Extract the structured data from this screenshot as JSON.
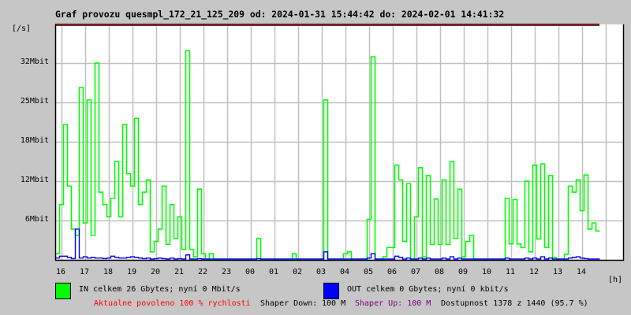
{
  "title": "Graf provozu quesmpl_172_21_125_209 od: 2024-01-31 15:44:42 do: 2024-02-01 14:41:32",
  "y_unit_label": "[/s]",
  "x_unit_label": "[h]",
  "legend": {
    "in": {
      "text": "IN celkem 26 Gbytes; nyní 0 Mbit/s",
      "color": "#00ff00"
    },
    "out": {
      "text": "OUT celkem 0 Gbytes; nyní 0 kbit/s",
      "color": "#0000ff"
    }
  },
  "footer": {
    "allowed": "Aktualne povoleno 100 % rychlosti",
    "shaper_down_label": "Shaper Down:",
    "shaper_down_value": "100 M",
    "shaper_up": "Shaper Up: 100 M",
    "availability": "Dostupnost 1378 z 1440 (95.7 %)"
  },
  "colors": {
    "background": "#c6c6c6",
    "plot": "#ffffff",
    "grid": "#c0c0c0",
    "allowed_text": "#ff0000",
    "shaper_up_text": "#800080"
  },
  "chart_data": {
    "type": "line",
    "title": "Graf provozu quesmpl_172_21_125_209 od: 2024-01-31 15:44:42 do: 2024-02-01 14:41:32",
    "xlabel": "[h]",
    "ylabel": "[/s]",
    "x_start": "2024-01-31 15:50",
    "x_step_minutes": 10,
    "x_tick_labels": [
      "16",
      "17",
      "18",
      "19",
      "20",
      "21",
      "22",
      "23",
      "00",
      "01",
      "02",
      "03",
      "04",
      "05",
      "06",
      "07",
      "08",
      "09",
      "10",
      "11",
      "12",
      "13",
      "14"
    ],
    "y_ticks": [
      {
        "value": 6.4,
        "label": "6Mbit"
      },
      {
        "value": 12.8,
        "label": "12Mbit"
      },
      {
        "value": 19.2,
        "label": "18Mbit"
      },
      {
        "value": 25.6,
        "label": "25Mbit"
      },
      {
        "value": 32,
        "label": "32Mbit"
      }
    ],
    "ylim": [
      0,
      38.4
    ],
    "y_unit": "Mbit/s",
    "grid": true,
    "legend_position": "bottom",
    "series": [
      {
        "name": "IN",
        "color": "#00ff00",
        "values": [
          1,
          9,
          22,
          12,
          5,
          4,
          28,
          6,
          26,
          4,
          32,
          11,
          9,
          7,
          10,
          16,
          7,
          22,
          14,
          12,
          23,
          9,
          11,
          13,
          1.3,
          3,
          5,
          12,
          2.5,
          9,
          3.5,
          7,
          1.7,
          34,
          1.7,
          0.5,
          11.5,
          1,
          0,
          1,
          0,
          0,
          0,
          0,
          0,
          0,
          0,
          0,
          0,
          0,
          0,
          3.5,
          0,
          0,
          0,
          0,
          0,
          0,
          0,
          0,
          1,
          0,
          0,
          0,
          0,
          0,
          0,
          0,
          26,
          0,
          0,
          0,
          0,
          1,
          1.3,
          0,
          0,
          0,
          0,
          6.6,
          33,
          0,
          0,
          0.5,
          2,
          2,
          15.4,
          13,
          3,
          12.4,
          0,
          7,
          15,
          0.5,
          13.7,
          2.5,
          9.9,
          2.5,
          13,
          2.5,
          16,
          3.5,
          11.5,
          0.5,
          3,
          4,
          0,
          0,
          0,
          0,
          0,
          0,
          0,
          0,
          10,
          2.6,
          9.8,
          2.6,
          2,
          12.8,
          1.3,
          15.4,
          3.4,
          15.6,
          2,
          13.7,
          0.4,
          0,
          0,
          0.9,
          12,
          11,
          13,
          8,
          13.8,
          5,
          6,
          4.7
        ]
      },
      {
        "name": "OUT",
        "color": "#0000ff",
        "values": [
          0.3,
          0.6,
          0.6,
          0.4,
          0.2,
          5,
          0.3,
          0.5,
          0.3,
          0.4,
          0.3,
          0.3,
          0.2,
          0.3,
          0.6,
          0.4,
          0.3,
          0.3,
          0.4,
          0.5,
          0.4,
          0.3,
          0.2,
          0.3,
          0,
          0.2,
          0.3,
          0.2,
          0,
          0.3,
          0,
          0.2,
          0,
          0.8,
          0,
          0,
          0.2,
          0,
          0,
          0,
          0,
          0,
          0,
          0,
          0,
          0,
          0,
          0,
          0,
          0,
          0,
          0.2,
          0,
          0,
          0,
          0,
          0,
          0,
          0,
          0,
          0,
          0,
          0,
          0,
          0,
          0,
          0,
          0,
          1.3,
          0,
          0,
          0,
          0,
          0,
          0,
          0,
          0,
          0,
          0,
          0.3,
          1,
          0,
          0,
          0,
          0,
          0,
          0.6,
          0.4,
          0,
          0.3,
          0,
          0,
          0.3,
          0,
          0.3,
          0,
          0,
          0,
          0.3,
          0,
          0.5,
          0,
          0.3,
          0,
          0,
          0,
          0,
          0,
          0,
          0,
          0,
          0,
          0,
          0,
          0.3,
          0,
          0,
          0,
          0,
          0.3,
          0,
          0.3,
          0,
          0.5,
          0,
          0.3,
          0,
          0,
          0,
          0,
          0.3,
          0.4,
          0.5,
          0.3,
          0.2,
          0,
          0,
          0
        ]
      }
    ]
  }
}
